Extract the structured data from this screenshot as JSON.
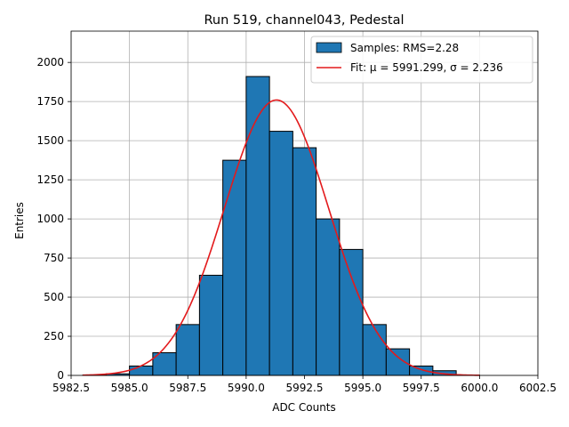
{
  "chart_data": {
    "type": "bar",
    "title": "Run 519, channel043, Pedestal",
    "xlabel": "ADC Counts",
    "ylabel": "Entries",
    "xlim": [
      5982.5,
      6002.5
    ],
    "ylim": [
      0,
      2200
    ],
    "xticks": [
      5982.5,
      5985.0,
      5987.5,
      5990.0,
      5992.5,
      5995.0,
      5997.5,
      6000.0,
      6002.5
    ],
    "xtick_labels": [
      "5982.5",
      "5985.0",
      "5987.5",
      "5990.0",
      "5992.5",
      "5995.0",
      "5997.5",
      "6000.0",
      "6002.5"
    ],
    "yticks": [
      0,
      250,
      500,
      750,
      1000,
      1250,
      1500,
      1750,
      2000
    ],
    "ytick_labels": [
      "0",
      "250",
      "500",
      "750",
      "1000",
      "1250",
      "1500",
      "1750",
      "2000"
    ],
    "grid": true,
    "legend_position": "top-right",
    "histogram": {
      "name": "Samples: RMS=2.28",
      "bin_edges": [
        5983,
        5984,
        5985,
        5986,
        5987,
        5988,
        5989,
        5990,
        5991,
        5992,
        5993,
        5994,
        5995,
        5996,
        5997,
        5998,
        5999,
        6000
      ],
      "counts": [
        2,
        10,
        60,
        145,
        325,
        640,
        1375,
        1910,
        1560,
        1455,
        1000,
        805,
        325,
        170,
        60,
        30,
        2
      ],
      "color": "#1f77b4",
      "edge_color": "#000000"
    },
    "fit": {
      "name": "Fit: μ = 5991.299, σ = 2.236",
      "mu": 5991.299,
      "sigma": 2.236,
      "peak": 1760,
      "x_range": [
        5983,
        6000
      ],
      "color": "#e31a1c"
    },
    "legend": [
      {
        "label": "Samples: RMS=2.28",
        "kind": "patch",
        "color": "#1f77b4"
      },
      {
        "label": "Fit: μ = 5991.299, σ = 2.236",
        "kind": "line",
        "color": "#e31a1c"
      }
    ]
  }
}
